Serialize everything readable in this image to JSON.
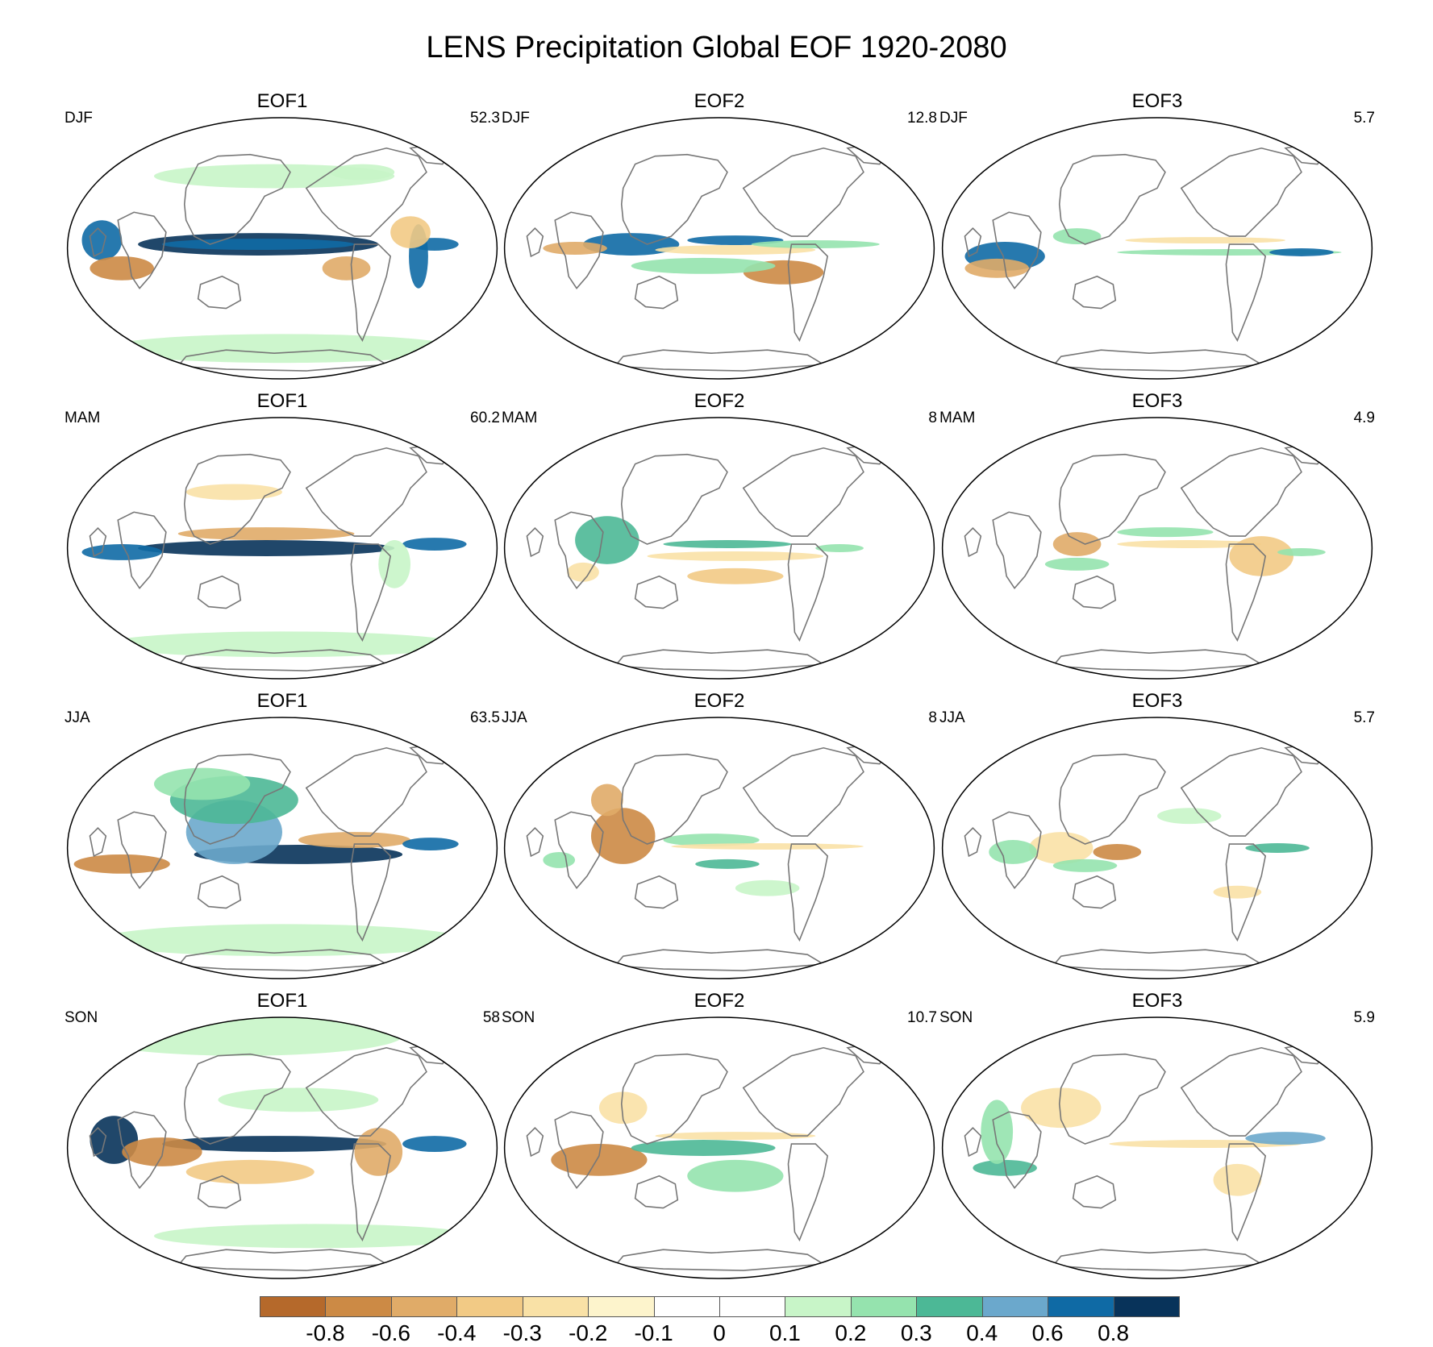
{
  "title": "LENS Precipitation Global EOF 1920-2080",
  "panels": [
    {
      "season": "DJF",
      "eof": "EOF1",
      "variance": "52.3"
    },
    {
      "season": "DJF",
      "eof": "EOF2",
      "variance": "12.8"
    },
    {
      "season": "DJF",
      "eof": "EOF3",
      "variance": "5.7"
    },
    {
      "season": "MAM",
      "eof": "EOF1",
      "variance": "60.2"
    },
    {
      "season": "MAM",
      "eof": "EOF2",
      "variance": "8"
    },
    {
      "season": "MAM",
      "eof": "EOF3",
      "variance": "4.9"
    },
    {
      "season": "JJA",
      "eof": "EOF1",
      "variance": "63.5"
    },
    {
      "season": "JJA",
      "eof": "EOF2",
      "variance": "8"
    },
    {
      "season": "JJA",
      "eof": "EOF3",
      "variance": "5.7"
    },
    {
      "season": "SON",
      "eof": "EOF1",
      "variance": "58"
    },
    {
      "season": "SON",
      "eof": "EOF2",
      "variance": "10.7"
    },
    {
      "season": "SON",
      "eof": "EOF3",
      "variance": "5.9"
    }
  ],
  "colorbar": {
    "labels": [
      "-0.8",
      "-0.6",
      "-0.4",
      "-0.3",
      "-0.2",
      "-0.1",
      "0",
      "0.1",
      "0.2",
      "0.3",
      "0.4",
      "0.6",
      "0.8"
    ],
    "colors": [
      "#b5692b",
      "#cc8a45",
      "#e0ab68",
      "#f2ca85",
      "#f9e1a6",
      "#fdf4cc",
      "#ffffff",
      "#ffffff",
      "#c8f5c8",
      "#95e3ae",
      "#4cb896",
      "#6ba8cc",
      "#0f6aa5",
      "#08335a"
    ]
  },
  "style": {
    "coast_color": "#777777",
    "border_color": "#000000"
  }
}
